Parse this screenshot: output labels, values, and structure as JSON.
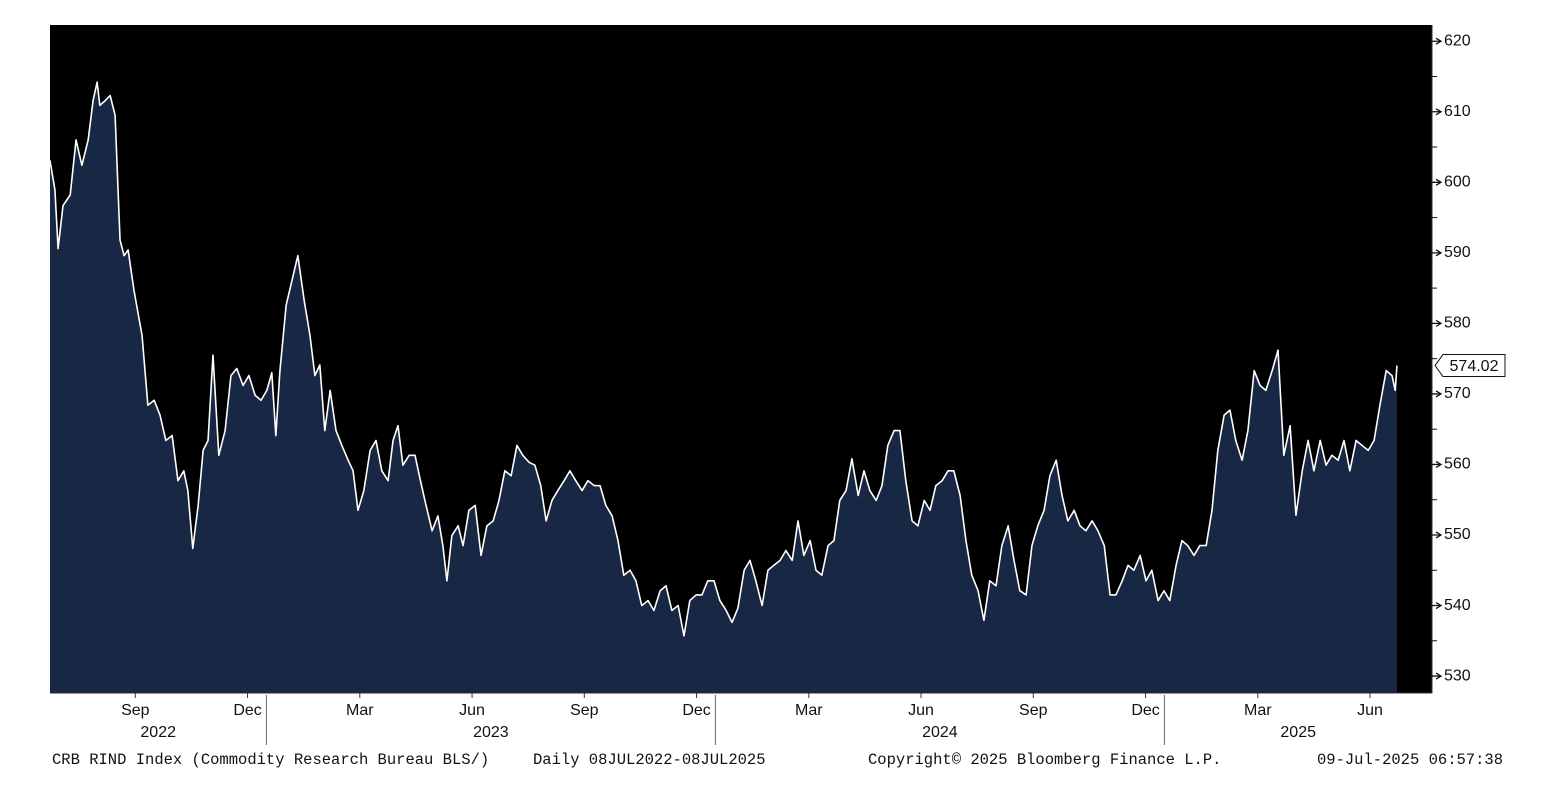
{
  "chart_data": {
    "type": "area",
    "subtitle": "CRB RIND Index (Commodity Research Bureau BLS/)",
    "period": "Daily 08JUL2022-08JUL2025",
    "copyright": "Copyright© 2025 Bloomberg Finance L.P.",
    "timestamp": "09-Jul-2025 06:57:38",
    "color": "#ffffff",
    "fill_color": "#172744",
    "background": "#000000",
    "last_value": 574.02,
    "xlim": [
      2022.518,
      2025.596
    ],
    "ylim": [
      527.6,
      622.3
    ],
    "yticks": [
      530,
      540,
      550,
      560,
      570,
      580,
      590,
      600,
      610,
      620
    ],
    "xticks": [
      {
        "value": 2022.708,
        "label": "Sep"
      },
      {
        "value": 2022.958,
        "label": "Dec"
      },
      {
        "value": 2023.208,
        "label": "Mar"
      },
      {
        "value": 2023.458,
        "label": "Jun"
      },
      {
        "value": 2023.708,
        "label": "Sep"
      },
      {
        "value": 2023.958,
        "label": "Dec"
      },
      {
        "value": 2024.208,
        "label": "Mar"
      },
      {
        "value": 2024.458,
        "label": "Jun"
      },
      {
        "value": 2024.708,
        "label": "Sep"
      },
      {
        "value": 2024.958,
        "label": "Dec"
      },
      {
        "value": 2025.208,
        "label": "Mar"
      },
      {
        "value": 2025.458,
        "label": "Jun"
      }
    ],
    "year_ticks": [
      2022,
      2023,
      2024,
      2025
    ],
    "x": [
      2022.518,
      2022.529,
      2022.536,
      2022.547,
      2022.563,
      2022.576,
      2022.589,
      2022.603,
      2022.614,
      2022.623,
      2022.629,
      2022.641,
      2022.652,
      2022.663,
      2022.674,
      2022.683,
      2022.692,
      2022.705,
      2022.723,
      2022.736,
      2022.75,
      2022.763,
      2022.776,
      2022.79,
      2022.803,
      2022.816,
      2022.825,
      2022.836,
      2022.848,
      2022.859,
      2022.87,
      2022.881,
      2022.894,
      2022.908,
      2022.921,
      2022.934,
      2022.948,
      2022.961,
      2022.975,
      2022.988,
      2023.001,
      2023.012,
      2023.021,
      2023.03,
      2023.044,
      2023.057,
      2023.07,
      2023.084,
      2023.097,
      2023.108,
      2023.119,
      2023.13,
      2023.142,
      2023.155,
      2023.168,
      2023.182,
      2023.193,
      2023.204,
      2023.217,
      2023.231,
      2023.244,
      2023.257,
      2023.271,
      2023.282,
      2023.293,
      2023.304,
      2023.318,
      2023.331,
      2023.342,
      2023.353,
      2023.369,
      2023.382,
      2023.393,
      2023.402,
      2023.413,
      2023.427,
      2023.438,
      2023.451,
      2023.465,
      2023.478,
      2023.491,
      2023.505,
      2023.518,
      2023.531,
      2023.545,
      2023.558,
      2023.571,
      2023.585,
      2023.598,
      2023.611,
      2023.623,
      2023.636,
      2023.649,
      2023.663,
      2023.676,
      2023.689,
      2023.703,
      2023.716,
      2023.73,
      2023.743,
      2023.756,
      2023.77,
      2023.783,
      2023.796,
      2023.81,
      2023.823,
      2023.836,
      2023.85,
      2023.863,
      2023.877,
      2023.89,
      2023.903,
      2023.917,
      2023.93,
      2023.943,
      2023.957,
      2023.97,
      2023.983,
      2023.997,
      2024.01,
      2024.024,
      2024.037,
      2024.05,
      2024.064,
      2024.077,
      2024.09,
      2024.104,
      2024.117,
      2024.13,
      2024.144,
      2024.157,
      2024.171,
      2024.184,
      2024.197,
      2024.211,
      2024.224,
      2024.237,
      2024.251,
      2024.264,
      2024.277,
      2024.291,
      2024.304,
      2024.318,
      2024.331,
      2024.344,
      2024.358,
      2024.371,
      2024.384,
      2024.398,
      2024.411,
      2024.424,
      2024.438,
      2024.451,
      2024.465,
      2024.478,
      2024.491,
      2024.505,
      2024.518,
      2024.531,
      2024.545,
      2024.558,
      2024.571,
      2024.585,
      2024.598,
      2024.611,
      2024.625,
      2024.638,
      2024.652,
      2024.665,
      2024.678,
      2024.692,
      2024.705,
      2024.718,
      2024.732,
      2024.745,
      2024.759,
      2024.772,
      2024.785,
      2024.799,
      2024.812,
      2024.825,
      2024.839,
      2024.852,
      2024.866,
      2024.879,
      2024.892,
      2024.906,
      2024.919,
      2024.932,
      2024.946,
      2024.959,
      2024.972,
      2024.986,
      2024.999,
      2025.012,
      2025.026,
      2025.039,
      2025.052,
      2025.066,
      2025.079,
      2025.093,
      2025.106,
      2025.119,
      2025.133,
      2025.146,
      2025.159,
      2025.173,
      2025.186,
      2025.2,
      2025.213,
      2025.226,
      2025.24,
      2025.253,
      2025.266,
      2025.28,
      2025.293,
      2025.307,
      2025.32,
      2025.333,
      2025.347,
      2025.36,
      2025.373,
      2025.387,
      2025.4,
      2025.413,
      2025.427,
      2025.44,
      2025.454,
      2025.467,
      2025.48,
      2025.494,
      2025.507,
      2025.514,
      2025.518
    ],
    "values": [
      603.1,
      598.9,
      590.6,
      596.7,
      598.2,
      606.0,
      602.4,
      606.0,
      611.6,
      614.2,
      610.9,
      611.6,
      612.3,
      609.5,
      591.8,
      589.6,
      590.4,
      584.7,
      578.3,
      568.4,
      569.1,
      567.0,
      563.4,
      564.1,
      557.7,
      559.1,
      556.3,
      548.1,
      554.2,
      562.0,
      563.4,
      575.5,
      561.3,
      564.8,
      572.6,
      573.6,
      571.2,
      572.6,
      569.8,
      569.1,
      570.5,
      573.0,
      564.1,
      573.2,
      582.6,
      586.1,
      589.6,
      583.3,
      578.3,
      572.6,
      574.1,
      564.8,
      570.5,
      564.8,
      562.7,
      560.6,
      559.1,
      553.5,
      556.3,
      562.0,
      563.4,
      559.1,
      557.7,
      563.4,
      565.5,
      559.9,
      561.3,
      561.3,
      558.0,
      554.9,
      550.6,
      552.7,
      548.5,
      543.5,
      549.9,
      551.3,
      548.5,
      553.5,
      554.2,
      547.1,
      551.3,
      552.0,
      554.9,
      559.1,
      558.4,
      562.7,
      561.3,
      560.3,
      559.9,
      557.0,
      552.0,
      554.9,
      556.3,
      557.7,
      559.1,
      557.7,
      556.3,
      557.7,
      557.0,
      557.0,
      554.2,
      552.7,
      549.2,
      544.3,
      545.0,
      543.5,
      540.0,
      540.7,
      539.3,
      542.1,
      542.8,
      539.3,
      540.0,
      535.7,
      540.7,
      541.5,
      541.5,
      543.5,
      543.5,
      540.7,
      539.3,
      537.6,
      539.6,
      545.0,
      546.4,
      543.5,
      540.0,
      545.0,
      545.7,
      546.4,
      547.8,
      546.4,
      552.0,
      547.1,
      549.2,
      545.0,
      544.3,
      548.5,
      549.2,
      554.9,
      556.3,
      560.8,
      555.6,
      559.1,
      556.3,
      554.9,
      557.0,
      562.7,
      564.8,
      564.8,
      557.7,
      552.0,
      551.3,
      554.9,
      553.5,
      557.0,
      557.7,
      559.1,
      559.1,
      555.6,
      549.2,
      544.3,
      542.1,
      537.9,
      543.5,
      542.8,
      548.5,
      551.3,
      546.4,
      542.1,
      541.5,
      548.5,
      551.3,
      553.5,
      558.4,
      560.6,
      555.6,
      552.0,
      553.5,
      551.3,
      550.6,
      552.0,
      550.6,
      548.5,
      541.5,
      541.5,
      543.5,
      545.7,
      545.0,
      547.1,
      543.5,
      545.0,
      540.7,
      542.1,
      540.7,
      545.7,
      549.2,
      548.5,
      547.1,
      548.5,
      548.5,
      553.5,
      562.0,
      567.0,
      567.7,
      563.4,
      560.6,
      564.8,
      573.3,
      571.2,
      570.5,
      573.3,
      576.2,
      561.3,
      565.5,
      552.8,
      559.1,
      563.4,
      559.1,
      563.4,
      559.9,
      561.3,
      560.6,
      563.4,
      559.1,
      563.4,
      562.7,
      562.0,
      563.4,
      568.4,
      573.3,
      572.6,
      570.5,
      574.02
    ]
  }
}
